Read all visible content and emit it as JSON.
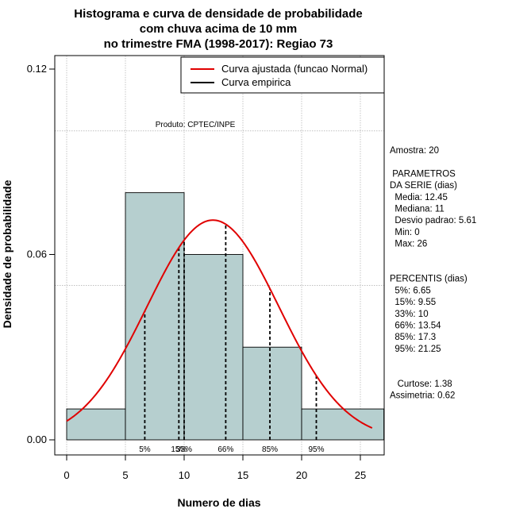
{
  "chart_data": {
    "type": "bar",
    "title_lines": [
      "Histograma e curva de densidade de probabilidade",
      "com chuva acima de 10 mm",
      "no trimestre FMA (1998-2017): Regiao 73"
    ],
    "xlabel": "Numero de dias",
    "ylabel": "Densidade de probabilidade",
    "xlim": [
      -1,
      27
    ],
    "ylim": [
      0,
      0.12
    ],
    "x_ticks": [
      0,
      5,
      10,
      15,
      20,
      25
    ],
    "y_ticks": [
      0.0,
      0.06,
      0.12
    ],
    "y_tick_labels": [
      "0.00",
      "0.06",
      "0.12"
    ],
    "grid": true,
    "grid_x": [
      0,
      5,
      10,
      15,
      20,
      25
    ],
    "grid_y": [
      0.05,
      0.1
    ],
    "bars": [
      {
        "from": 0,
        "to": 5,
        "value": 0.01
      },
      {
        "from": 5,
        "to": 10,
        "value": 0.08
      },
      {
        "from": 10,
        "to": 15,
        "value": 0.06
      },
      {
        "from": 15,
        "to": 20,
        "value": 0.03
      },
      {
        "from": 20,
        "to": 27,
        "value": 0.01
      }
    ],
    "bar_color": "#b6cfcf",
    "normal_curve": {
      "mean": 12.45,
      "sd": 5.61,
      "x_from": 0,
      "x_to": 26,
      "color": "#e00000"
    },
    "percentile_lines": [
      {
        "label": "5%",
        "x": 6.65
      },
      {
        "label": "15%",
        "x": 9.55
      },
      {
        "label": "33%",
        "x": 10
      },
      {
        "label": "66%",
        "x": 13.54
      },
      {
        "label": "85%",
        "x": 17.3
      },
      {
        "label": "95%",
        "x": 21.25
      }
    ],
    "percentile_label_text": [
      "5%",
      "15%",
      "33%",
      "66%",
      "85%",
      "95%"
    ],
    "legend": {
      "placement": "top-right",
      "entries": [
        {
          "label": "Curva ajustada (funcao Normal)",
          "color": "#e00000"
        },
        {
          "label": "Curva empirica",
          "color": "#000000"
        }
      ]
    },
    "annotation": "Produto: CPTEC/INPE"
  },
  "stats": {
    "lines": [
      "Amostra: 20",
      "",
      " PARAMETROS",
      "DA SERIE (dias)",
      "  Media: 12.45",
      "  Mediana: 11",
      "  Desvio padrao: 5.61",
      "  Min: 0",
      "  Max: 26",
      "",
      "",
      "PERCENTIS (dias)",
      "  5%: 6.65",
      "  15%: 9.55",
      "  33%: 10",
      "  66%: 13.54",
      "  85%: 17.3",
      "  95%: 21.25",
      "",
      "",
      "   Curtose: 1.38",
      "Assimetria: 0.62"
    ]
  }
}
